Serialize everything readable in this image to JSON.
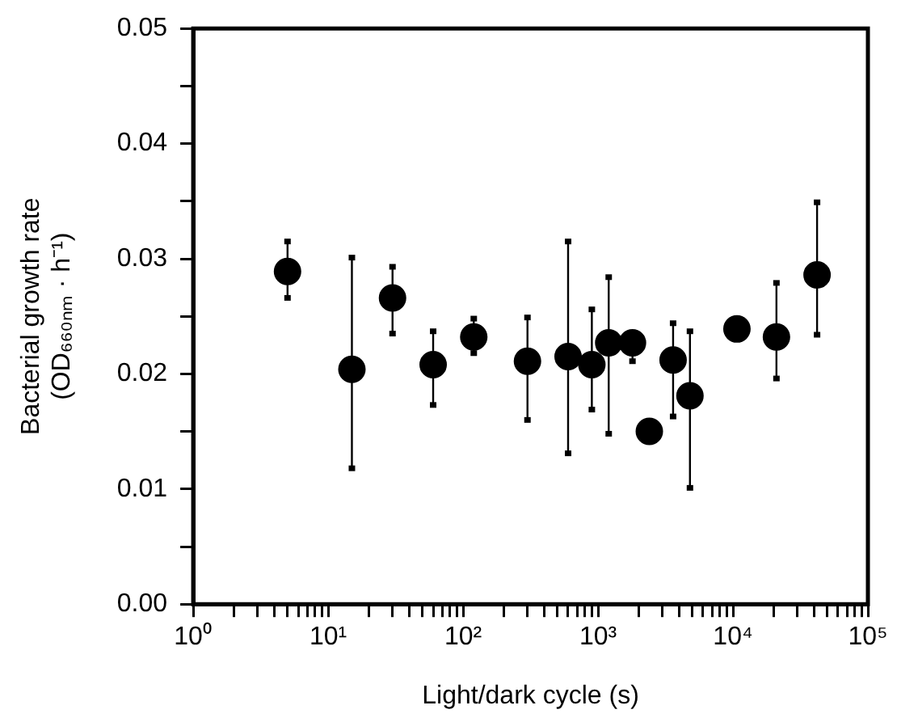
{
  "chart_data": {
    "type": "scatter",
    "xlabel": "Light/dark cycle (s)",
    "ylabel": "Bacterial growth rate\n(OD₆₆₀ₙₘ · h⁻¹)",
    "log": "x",
    "grid": false,
    "marker": "circle",
    "x": [
      5,
      15,
      30,
      60,
      120,
      300,
      600,
      900,
      1200,
      1800,
      2400,
      3600,
      4800,
      10700,
      21000,
      42000
    ],
    "series": [
      {
        "color": "#000000",
        "values": [
          0.0289,
          0.0204,
          0.0266,
          0.0208,
          0.0232,
          0.0211,
          0.0215,
          0.0208,
          0.0227,
          0.0227,
          0.015,
          0.0212,
          0.0181,
          0.0239,
          0.0232,
          0.0286
        ],
        "errors": [
          [
            0.0266,
            0.0315
          ],
          [
            0.0118,
            0.0301
          ],
          [
            0.0235,
            0.0293
          ],
          [
            0.0173,
            0.0237
          ],
          [
            0.0218,
            0.0248
          ],
          [
            0.016,
            0.0249
          ],
          [
            0.0131,
            0.0315
          ],
          [
            0.0169,
            0.0256
          ],
          [
            0.0148,
            0.0284
          ],
          [
            0.0211,
            0.0235
          ],
          null,
          [
            0.0163,
            0.0244
          ],
          [
            0.0101,
            0.0237
          ],
          null,
          [
            0.0196,
            0.0279
          ],
          [
            0.0234,
            0.0349
          ]
        ]
      }
    ],
    "xlim": [
      1,
      100000
    ],
    "xticks": [
      {
        "value": 1,
        "label": "10⁰"
      },
      {
        "value": 2,
        "label": null
      },
      {
        "value": 3,
        "label": null
      },
      {
        "value": 4,
        "label": null
      },
      {
        "value": 5,
        "label": null
      },
      {
        "value": 6,
        "label": null
      },
      {
        "value": 7,
        "label": null
      },
      {
        "value": 8,
        "label": null
      },
      {
        "value": 9,
        "label": null
      },
      {
        "value": 10,
        "label": "10¹"
      },
      {
        "value": 20,
        "label": null
      },
      {
        "value": 30,
        "label": null
      },
      {
        "value": 40,
        "label": null
      },
      {
        "value": 50,
        "label": null
      },
      {
        "value": 60,
        "label": null
      },
      {
        "value": 70,
        "label": null
      },
      {
        "value": 80,
        "label": null
      },
      {
        "value": 90,
        "label": null
      },
      {
        "value": 100,
        "label": "10²"
      },
      {
        "value": 200,
        "label": null
      },
      {
        "value": 300,
        "label": null
      },
      {
        "value": 400,
        "label": null
      },
      {
        "value": 500,
        "label": null
      },
      {
        "value": 600,
        "label": null
      },
      {
        "value": 700,
        "label": null
      },
      {
        "value": 800,
        "label": null
      },
      {
        "value": 900,
        "label": null
      },
      {
        "value": 1000,
        "label": "10³"
      },
      {
        "value": 2000,
        "label": null
      },
      {
        "value": 3000,
        "label": null
      },
      {
        "value": 4000,
        "label": null
      },
      {
        "value": 5000,
        "label": null
      },
      {
        "value": 6000,
        "label": null
      },
      {
        "value": 7000,
        "label": null
      },
      {
        "value": 8000,
        "label": null
      },
      {
        "value": 9000,
        "label": null
      },
      {
        "value": 10000,
        "label": "10⁴"
      },
      {
        "value": 20000,
        "label": null
      },
      {
        "value": 30000,
        "label": null
      },
      {
        "value": 40000,
        "label": null
      },
      {
        "value": 50000,
        "label": null
      },
      {
        "value": 60000,
        "label": null
      },
      {
        "value": 70000,
        "label": null
      },
      {
        "value": 80000,
        "label": null
      },
      {
        "value": 90000,
        "label": null
      },
      {
        "value": 100000,
        "label": "10⁵"
      }
    ],
    "ylim": [
      0,
      0.05
    ],
    "yticks": [
      {
        "value": 0,
        "label": "0.00"
      },
      {
        "value": 0.005,
        "label": null
      },
      {
        "value": 0.01,
        "label": "0.01"
      },
      {
        "value": 0.015,
        "label": null
      },
      {
        "value": 0.02,
        "label": "0.02"
      },
      {
        "value": 0.025,
        "label": null
      },
      {
        "value": 0.03,
        "label": "0.03"
      },
      {
        "value": 0.035,
        "label": null
      },
      {
        "value": 0.04,
        "label": "0.04"
      },
      {
        "value": 0.045,
        "label": null
      },
      {
        "value": 0.05,
        "label": "0.05"
      }
    ]
  }
}
